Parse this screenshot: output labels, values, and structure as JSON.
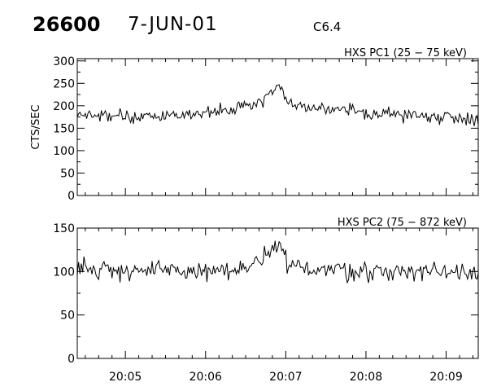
{
  "header": {
    "event_id": "26600",
    "date": "7-JUN-01",
    "flare_class": "C6.4"
  },
  "chart_data": [
    {
      "type": "line",
      "title": "HXS PC1 (25 − 75 keV)",
      "ylabel": "CTS/SEC",
      "xlabel": "",
      "ylim": [
        0,
        305
      ],
      "yticks": [
        0,
        50,
        100,
        150,
        200,
        250,
        300
      ],
      "xlim": [
        "20:04:24",
        "20:09:24"
      ],
      "xtick_labels": [],
      "grid": false,
      "series": [
        {
          "baseline": 172,
          "segments": [
            {
              "x": "20:04:24",
              "y": 178
            },
            {
              "x": "20:05:30",
              "y": 176
            },
            {
              "x": "20:06:15",
              "y": 190
            },
            {
              "x": "20:06:35",
              "y": 200
            },
            {
              "x": "20:06:55",
              "y": 245
            },
            {
              "x": "20:07:02",
              "y": 205
            },
            {
              "x": "20:07:30",
              "y": 190
            },
            {
              "x": "20:08:30",
              "y": 180
            },
            {
              "x": "20:09:24",
              "y": 172
            }
          ]
        }
      ]
    },
    {
      "type": "line",
      "title": "HXS PC2 (75 − 872 keV)",
      "ylabel": "",
      "xlabel": "",
      "ylim": [
        0,
        150
      ],
      "yticks": [
        0,
        50,
        100,
        150
      ],
      "xlim": [
        "20:04:24",
        "20:09:24"
      ],
      "xtick_labels": [
        "20:05",
        "20:06",
        "20:07",
        "20:08",
        "20:09"
      ],
      "grid": false,
      "series": [
        {
          "baseline": 100,
          "segments": [
            {
              "x": "20:04:24",
              "y": 104
            },
            {
              "x": "20:05:30",
              "y": 100
            },
            {
              "x": "20:06:30",
              "y": 101
            },
            {
              "x": "20:06:55",
              "y": 128
            },
            {
              "x": "20:07:02",
              "y": 106
            },
            {
              "x": "20:08:00",
              "y": 100
            },
            {
              "x": "20:09:24",
              "y": 101
            }
          ]
        }
      ]
    }
  ]
}
